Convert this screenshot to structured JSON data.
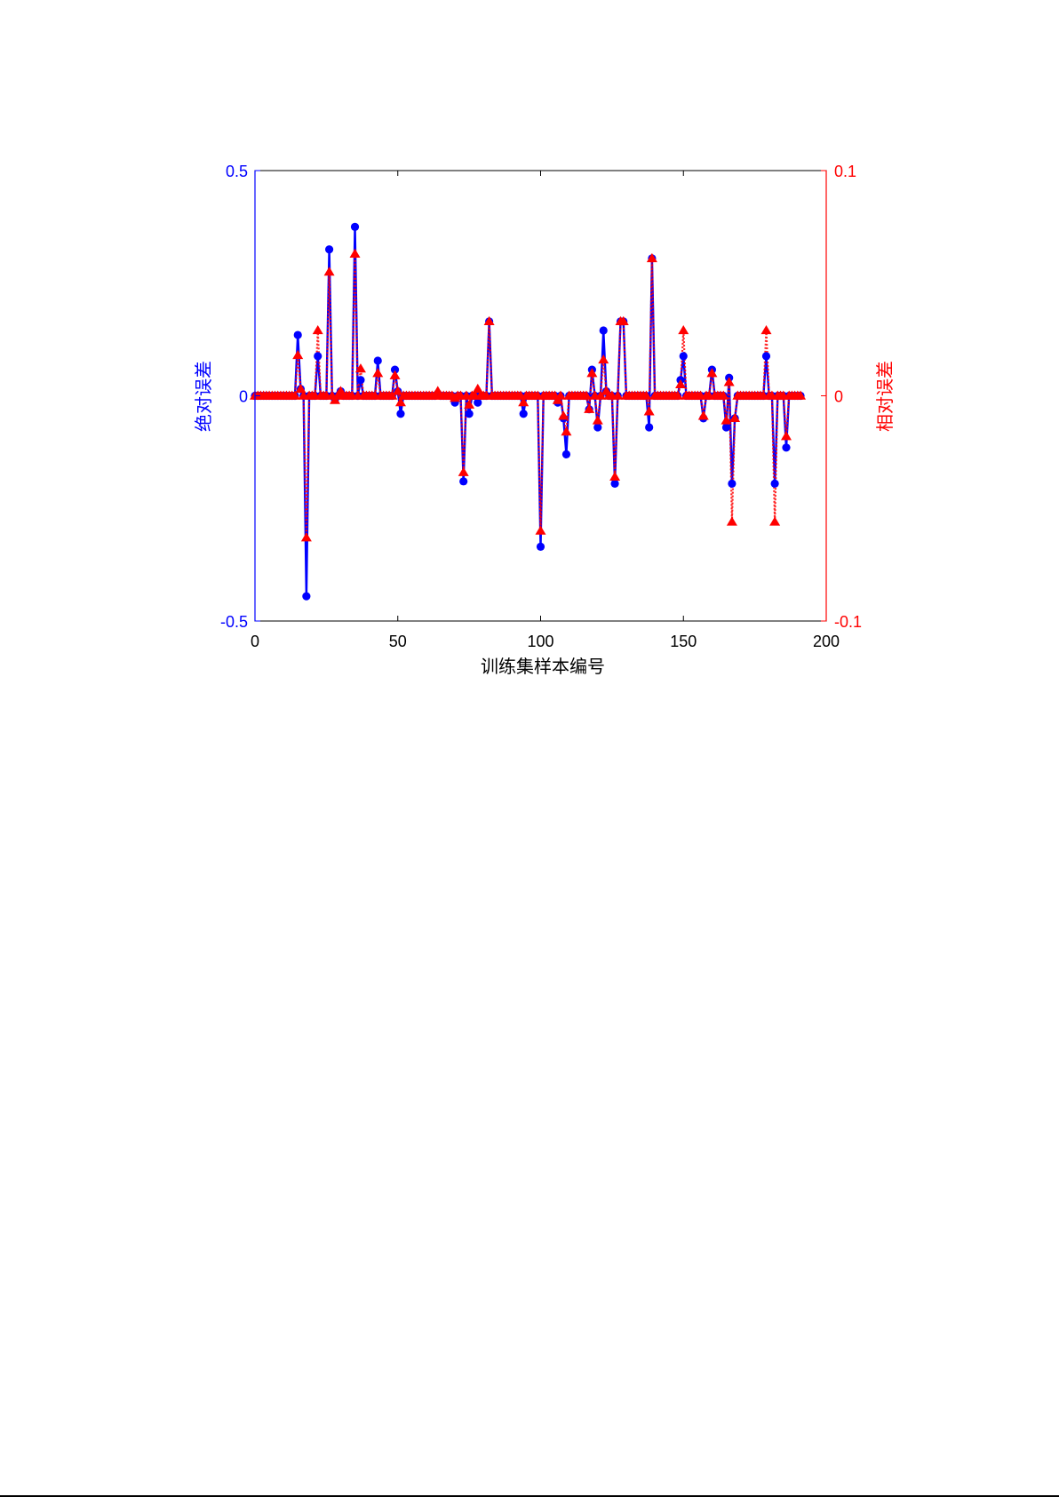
{
  "colors": {
    "absolute": "#0000ff",
    "relative": "#ff0000",
    "axis": "#000000",
    "mixed_line": "#8a00c8"
  },
  "chart_data": {
    "type": "line",
    "xlabel": "训练集样本编号",
    "ylabel_left": "绝对误差",
    "ylabel_right": "相对误差",
    "xlim": [
      0,
      200
    ],
    "ylim_left": [
      -0.5,
      0.5
    ],
    "ylim_right": [
      -0.1,
      0.1
    ],
    "x_ticks": [
      "0",
      "50",
      "100",
      "150",
      "200"
    ],
    "y_left_ticks": [
      "-0.5",
      "0",
      "0.5"
    ],
    "y_right_ticks": [
      "-0.1",
      "0",
      "0.1"
    ],
    "x": [
      0,
      1,
      2,
      3,
      4,
      5,
      6,
      7,
      8,
      9,
      10,
      11,
      12,
      13,
      14,
      15,
      16,
      17,
      18,
      19,
      20,
      21,
      22,
      23,
      24,
      25,
      26,
      27,
      28,
      29,
      30,
      31,
      32,
      33,
      34,
      35,
      36,
      37,
      38,
      39,
      40,
      41,
      42,
      43,
      44,
      45,
      46,
      47,
      48,
      49,
      50,
      51,
      52,
      53,
      54,
      55,
      56,
      57,
      58,
      59,
      60,
      61,
      62,
      63,
      64,
      65,
      66,
      67,
      68,
      69,
      70,
      71,
      72,
      73,
      74,
      75,
      76,
      77,
      78,
      79,
      80,
      81,
      82,
      83,
      84,
      85,
      86,
      87,
      88,
      89,
      90,
      91,
      92,
      93,
      94,
      95,
      96,
      97,
      98,
      99,
      100,
      101,
      102,
      103,
      104,
      105,
      106,
      107,
      108,
      109,
      110,
      111,
      112,
      113,
      114,
      115,
      116,
      117,
      118,
      119,
      120,
      121,
      122,
      123,
      124,
      125,
      126,
      127,
      128,
      129,
      130,
      131,
      132,
      133,
      134,
      135,
      136,
      137,
      138,
      139,
      140,
      141,
      142,
      143,
      144,
      145,
      146,
      147,
      148,
      149,
      150,
      151,
      152,
      153,
      154,
      155,
      156,
      157,
      158,
      159,
      160,
      161,
      162,
      163,
      164,
      165,
      166,
      167,
      168,
      169,
      170,
      171,
      172,
      173,
      174,
      175,
      176,
      177,
      178,
      179,
      180,
      181,
      182,
      183,
      184,
      185,
      186,
      187,
      188,
      189,
      190,
      191
    ],
    "series": [
      {
        "name": "绝对误差",
        "axis": "left",
        "marker": "circle",
        "line": "solid",
        "values": [
          0,
          0,
          0,
          0,
          0,
          0,
          0,
          0,
          0,
          0,
          0,
          0,
          0,
          0,
          0,
          0.135,
          0.015,
          0,
          -0.445,
          0,
          0,
          0,
          0.088,
          0,
          0,
          0,
          0.325,
          0,
          -0.008,
          0,
          0.01,
          0,
          0,
          0,
          0,
          0.375,
          0,
          0.035,
          0,
          0,
          0,
          0,
          0,
          0.078,
          0,
          0,
          0,
          0,
          0,
          0.058,
          0.01,
          -0.04,
          0,
          0,
          0,
          0,
          0,
          0,
          0,
          0,
          0,
          0,
          0,
          0,
          0.005,
          0,
          0,
          0,
          0,
          0,
          -0.015,
          0,
          0,
          -0.19,
          0,
          -0.04,
          0,
          0,
          -0.015,
          0,
          0,
          0,
          0.165,
          0,
          0,
          0,
          0,
          0,
          0,
          0,
          0,
          0,
          0,
          0,
          -0.04,
          0,
          0,
          0,
          0,
          0,
          -0.335,
          0,
          0,
          0,
          0,
          0,
          -0.015,
          0,
          -0.05,
          -0.13,
          0,
          0,
          0,
          0,
          0,
          0,
          0,
          -0.03,
          0.058,
          0,
          -0.07,
          0,
          0.145,
          0.01,
          0,
          0,
          -0.195,
          0,
          0.165,
          0.165,
          0,
          0,
          0,
          0,
          0,
          0,
          0,
          0,
          -0.07,
          0.305,
          0,
          0,
          0,
          0,
          0,
          0,
          0,
          0,
          0,
          0.035,
          0.088,
          0,
          0,
          0,
          0,
          0,
          0,
          -0.05,
          0,
          0,
          0.058,
          0,
          0,
          0,
          0,
          -0.07,
          0.04,
          -0.195,
          -0.05,
          0,
          0,
          0,
          0,
          0,
          0,
          0,
          0,
          0,
          0,
          0.088,
          0,
          0,
          -0.195,
          0,
          0,
          0,
          -0.115,
          0,
          0,
          0,
          0,
          0
        ]
      },
      {
        "name": "相对误差",
        "axis": "right",
        "marker": "triangle",
        "line": "dotted",
        "values": [
          0,
          0,
          0,
          0,
          0,
          0,
          0,
          0,
          0,
          0,
          0,
          0,
          0,
          0,
          0,
          0.018,
          0.003,
          0,
          -0.063,
          0,
          0,
          0,
          0.029,
          0,
          0,
          0,
          0.055,
          0,
          -0.002,
          0,
          0.002,
          0,
          0,
          0,
          0,
          0.063,
          0,
          0.012,
          0,
          0,
          0,
          0,
          0,
          0.01,
          0,
          0,
          0,
          0,
          0,
          0.009,
          0.002,
          -0.003,
          0,
          0,
          0,
          0,
          0,
          0,
          0,
          0,
          0,
          0,
          0,
          0,
          0.002,
          0,
          0,
          0,
          0,
          0,
          -0.001,
          0,
          0,
          -0.034,
          0,
          -0.004,
          0,
          0,
          0.003,
          0,
          0,
          0,
          0.033,
          0,
          0,
          0,
          0,
          0,
          0,
          0,
          0,
          0,
          0,
          0,
          -0.003,
          0,
          0,
          0,
          0,
          0,
          -0.06,
          0,
          0,
          0,
          0,
          0,
          -0.002,
          0,
          -0.009,
          -0.016,
          0,
          0,
          0,
          0,
          0,
          0,
          0,
          -0.006,
          0.01,
          0,
          -0.011,
          0,
          0.016,
          0.002,
          0,
          0,
          -0.036,
          0,
          0.033,
          0.033,
          0,
          0,
          0,
          0,
          0,
          0,
          0,
          0,
          -0.007,
          0.061,
          0,
          0,
          0,
          0,
          0,
          0,
          0,
          0,
          0,
          0.005,
          0.029,
          0,
          0,
          0,
          0,
          0,
          0,
          -0.009,
          0,
          0,
          0.01,
          0,
          0,
          0,
          0,
          -0.011,
          0.006,
          -0.056,
          -0.01,
          0,
          0,
          0,
          0,
          0,
          0,
          0,
          0,
          0,
          0,
          0.029,
          0,
          0,
          -0.056,
          0,
          0,
          0,
          -0.018,
          0,
          0,
          0,
          0,
          0
        ]
      }
    ]
  }
}
